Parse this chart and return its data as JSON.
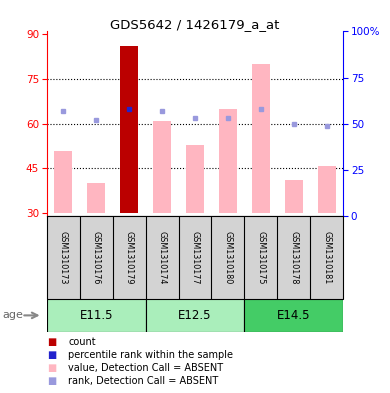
{
  "title": "GDS5642 / 1426179_a_at",
  "samples": [
    "GSM1310173",
    "GSM1310176",
    "GSM1310179",
    "GSM1310174",
    "GSM1310177",
    "GSM1310180",
    "GSM1310175",
    "GSM1310178",
    "GSM1310181"
  ],
  "age_groups": [
    {
      "label": "E11.5",
      "indices": [
        0,
        1,
        2
      ],
      "color": "#AAEEBB"
    },
    {
      "label": "E12.5",
      "indices": [
        3,
        4,
        5
      ],
      "color": "#AAEEBB"
    },
    {
      "label": "E14.5",
      "indices": [
        6,
        7,
        8
      ],
      "color": "#44CC66"
    }
  ],
  "value_bars": [
    51,
    40,
    86,
    61,
    53,
    65,
    80,
    41,
    46
  ],
  "rank_dots": [
    57,
    52,
    58,
    57,
    53,
    53,
    58,
    50,
    49
  ],
  "red_bar_index": 2,
  "blue_dot_index": 2,
  "ylim_left": [
    29,
    91
  ],
  "yticks_left": [
    30,
    45,
    60,
    75,
    90
  ],
  "yticks_right": [
    0,
    25,
    50,
    75,
    100
  ],
  "bar_color_absent": "#FFB6C1",
  "bar_color_count": "#BB0000",
  "dot_color_rank": "#9999DD",
  "dot_color_blue": "#2222CC",
  "bg_color_samples": "#D3D3D3",
  "value_bar_bottom": 30,
  "legend": [
    {
      "color": "#BB0000",
      "label": "count"
    },
    {
      "color": "#2222CC",
      "label": "percentile rank within the sample"
    },
    {
      "color": "#FFB6C1",
      "label": "value, Detection Call = ABSENT"
    },
    {
      "color": "#9999DD",
      "label": "rank, Detection Call = ABSENT"
    }
  ]
}
